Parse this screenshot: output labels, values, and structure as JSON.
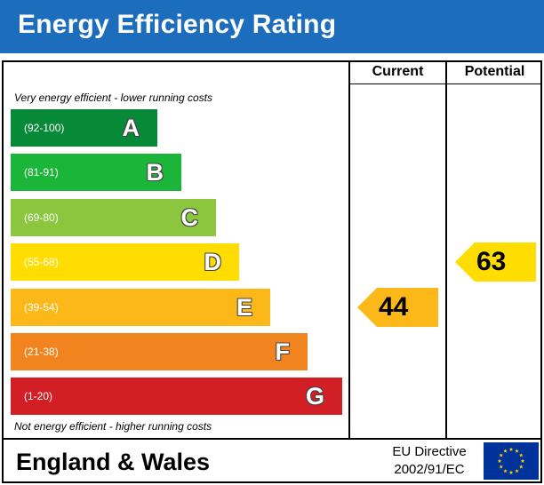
{
  "header": {
    "title": "Energy Efficiency Rating"
  },
  "columns": {
    "current": "Current",
    "potential": "Potential"
  },
  "notes": {
    "top": "Very energy efficient - lower running costs",
    "bottom": "Not energy efficient - higher running costs"
  },
  "chart_data": {
    "type": "bar",
    "title": "Energy Efficiency Rating",
    "bands": [
      {
        "letter": "A",
        "range": "(92-100)",
        "min": 92,
        "max": 100,
        "color": "#078a37"
      },
      {
        "letter": "B",
        "range": "(81-91)",
        "min": 81,
        "max": 91,
        "color": "#1bb53a"
      },
      {
        "letter": "C",
        "range": "(69-80)",
        "min": 69,
        "max": 80,
        "color": "#8cc63e"
      },
      {
        "letter": "D",
        "range": "(55-68)",
        "min": 55,
        "max": 68,
        "color": "#ffdd00"
      },
      {
        "letter": "E",
        "range": "(39-54)",
        "min": 39,
        "max": 54,
        "color": "#fbb818"
      },
      {
        "letter": "F",
        "range": "(21-38)",
        "min": 21,
        "max": 38,
        "color": "#f2841f"
      },
      {
        "letter": "G",
        "range": "(1-20)",
        "min": 1,
        "max": 20,
        "color": "#d21f25"
      }
    ],
    "current": {
      "value": "44",
      "band": "E",
      "color": "#fbb818"
    },
    "potential": {
      "value": "63",
      "band": "D",
      "color": "#ffdd00"
    }
  },
  "footer": {
    "region": "England & Wales",
    "directive_line1": "EU Directive",
    "directive_line2": "2002/91/EC",
    "flag_icon": "eu-flag-icon",
    "flag_color": "#003399",
    "star_color": "#ffcc00"
  }
}
